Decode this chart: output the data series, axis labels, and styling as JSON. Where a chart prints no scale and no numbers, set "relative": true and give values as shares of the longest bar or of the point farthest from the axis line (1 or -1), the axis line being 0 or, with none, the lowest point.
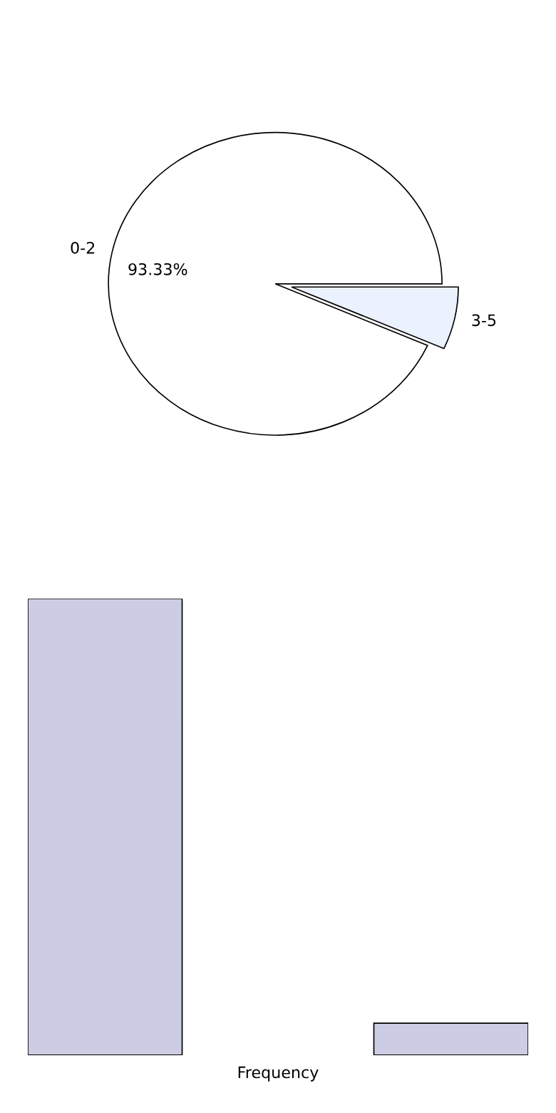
{
  "chart_data": [
    {
      "type": "pie",
      "categories": [
        "0-2",
        "3-5"
      ],
      "values": [
        93.33,
        6.67
      ],
      "colors": [
        "#ffffff",
        "#ebf1fd"
      ],
      "value_labels": [
        "93.33%",
        null
      ]
    },
    {
      "type": "bar",
      "categories": [
        null,
        null
      ],
      "values": [
        1,
        0.07
      ],
      "color": "#cccce4",
      "relative": true,
      "xlabel": "Frequency",
      "grid": false
    }
  ]
}
